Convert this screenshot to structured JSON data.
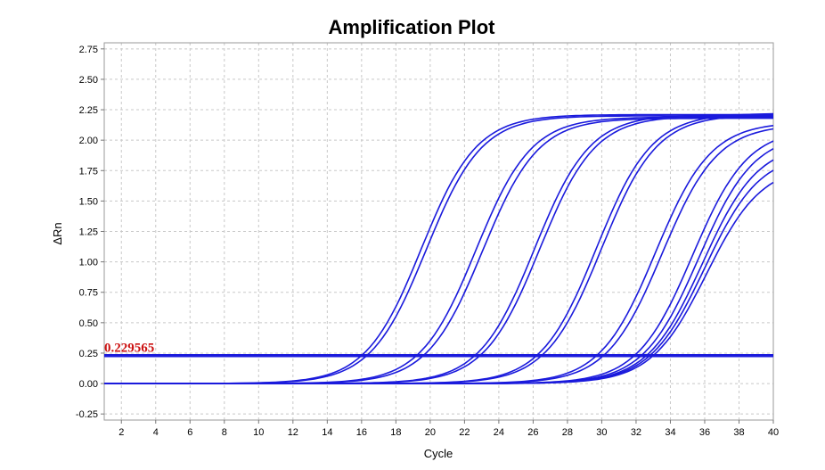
{
  "chart_data": {
    "type": "line",
    "title": "Amplification Plot",
    "xlabel": "Cycle",
    "ylabel": "ΔRn",
    "xlim": [
      1,
      40
    ],
    "ylim": [
      -0.3,
      2.8
    ],
    "x_ticks": [
      2,
      4,
      6,
      8,
      10,
      12,
      14,
      16,
      18,
      20,
      22,
      24,
      26,
      28,
      30,
      32,
      34,
      36,
      38,
      40
    ],
    "y_ticks": [
      "-0.25",
      "0.00",
      "0.25",
      "0.50",
      "0.75",
      "1.00",
      "1.25",
      "1.50",
      "1.75",
      "2.00",
      "2.25",
      "2.50",
      "2.75"
    ],
    "grid": true,
    "colors": {
      "curves": "#1a1adc",
      "threshold": "#1a1adc",
      "threshold_label": "#cc1111"
    },
    "threshold": {
      "value": 0.229565,
      "label": "0.229565"
    },
    "curve_model": "sigmoid",
    "x": [
      1,
      2,
      3,
      4,
      5,
      6,
      7,
      8,
      9,
      10,
      11,
      12,
      13,
      14,
      15,
      16,
      17,
      18,
      19,
      20,
      21,
      22,
      23,
      24,
      25,
      26,
      27,
      28,
      29,
      30,
      31,
      32,
      33,
      34,
      35,
      36,
      37,
      38,
      39,
      40
    ],
    "series": [
      {
        "max": 2.21,
        "ct": 16.0
      },
      {
        "max": 2.2,
        "ct": 16.3
      },
      {
        "max": 2.19,
        "ct": 19.2
      },
      {
        "max": 2.18,
        "ct": 19.6
      },
      {
        "max": 2.21,
        "ct": 22.6
      },
      {
        "max": 2.2,
        "ct": 22.9
      },
      {
        "max": 2.22,
        "ct": 26.2
      },
      {
        "max": 2.21,
        "ct": 26.5
      },
      {
        "max": 2.15,
        "ct": 29.7
      },
      {
        "max": 2.13,
        "ct": 30.1
      },
      {
        "max": 2.1,
        "ct": 31.9
      },
      {
        "max": 2.06,
        "ct": 32.3
      },
      {
        "max": 1.98,
        "ct": 32.6
      },
      {
        "max": 1.9,
        "ct": 32.8
      },
      {
        "max": 1.8,
        "ct": 33.0
      }
    ]
  }
}
